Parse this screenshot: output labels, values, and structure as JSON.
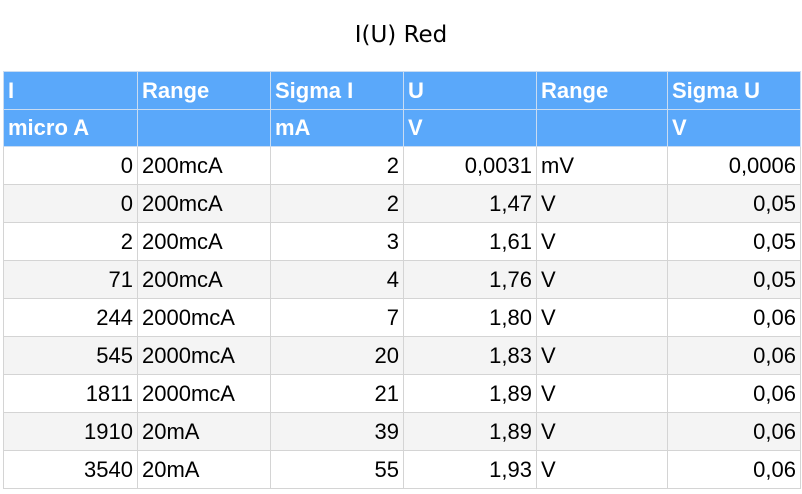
{
  "title": "I(U) Red",
  "header_row1": [
    "I",
    "Range",
    "Sigma I",
    "U",
    "Range",
    "Sigma U"
  ],
  "header_row2": [
    "micro A",
    "",
    "mA",
    "V",
    "",
    "V"
  ],
  "rows": [
    [
      "0",
      "200mcA",
      "2",
      "0,0031",
      "mV",
      "0,0006"
    ],
    [
      "0",
      "200mcA",
      "2",
      "1,47",
      "V",
      "0,05"
    ],
    [
      "2",
      "200mcA",
      "3",
      "1,61",
      "V",
      "0,05"
    ],
    [
      "71",
      "200mcA",
      "4",
      "1,76",
      "V",
      "0,05"
    ],
    [
      "244",
      "2000mcA",
      "7",
      "1,80",
      "V",
      "0,06"
    ],
    [
      "545",
      "2000mcA",
      "20",
      "1,83",
      "V",
      "0,06"
    ],
    [
      "1811",
      "2000mcA",
      "21",
      "1,89",
      "V",
      "0,06"
    ],
    [
      "1910",
      "20mA",
      "39",
      "1,89",
      "V",
      "0,06"
    ],
    [
      "3540",
      "20mA",
      "55",
      "1,93",
      "V",
      "0,06"
    ]
  ],
  "colors": {
    "header_bg": "#5aa8fa",
    "header_text": "#ffffff",
    "alt_row_bg": "#f4f4f4",
    "grid_line": "#d4d4d4"
  }
}
